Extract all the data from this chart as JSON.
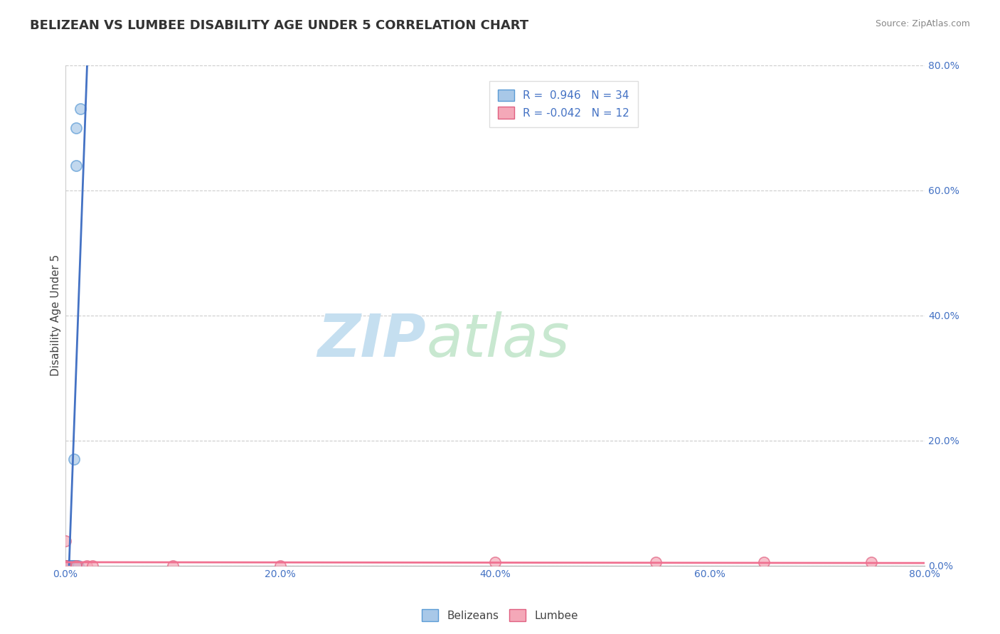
{
  "title": "BELIZEAN VS LUMBEE DISABILITY AGE UNDER 5 CORRELATION CHART",
  "source": "Source: ZipAtlas.com",
  "ylabel": "Disability Age Under 5",
  "xlim": [
    0.0,
    0.8
  ],
  "ylim": [
    0.0,
    0.8
  ],
  "xticks": [
    0.0,
    0.2,
    0.4,
    0.6,
    0.8
  ],
  "yticks": [
    0.0,
    0.2,
    0.4,
    0.6,
    0.8
  ],
  "xticklabels": [
    "0.0%",
    "20.0%",
    "40.0%",
    "60.0%",
    "80.0%"
  ],
  "yticklabels": [
    "0.0%",
    "20.0%",
    "40.0%",
    "60.0%",
    "80.0%"
  ],
  "belizean_color": "#a8c8e8",
  "lumbee_color": "#f4a8b8",
  "belizean_edge_color": "#5b9bd5",
  "lumbee_edge_color": "#e06080",
  "regression_blue_color": "#4472c4",
  "regression_pink_color": "#f07090",
  "belizean_R": 0.946,
  "belizean_N": 34,
  "lumbee_R": -0.042,
  "lumbee_N": 12,
  "watermark_zip": "ZIP",
  "watermark_atlas": "atlas",
  "belizean_x": [
    0.0,
    0.0,
    0.0,
    0.0,
    0.0,
    0.0,
    0.0,
    0.0,
    0.002,
    0.002,
    0.003,
    0.003,
    0.003,
    0.003,
    0.004,
    0.004,
    0.004,
    0.005,
    0.005,
    0.005,
    0.006,
    0.006,
    0.007,
    0.007,
    0.007,
    0.008,
    0.008,
    0.009,
    0.009,
    0.01,
    0.01,
    0.011,
    0.012,
    0.014
  ],
  "belizean_y": [
    0.0,
    0.0,
    0.0,
    0.0,
    0.0,
    0.0,
    0.0,
    0.0,
    0.0,
    0.0,
    0.0,
    0.0,
    0.0,
    0.0,
    0.0,
    0.0,
    0.0,
    0.0,
    0.0,
    0.0,
    0.0,
    0.0,
    0.0,
    0.0,
    0.0,
    0.0,
    0.17,
    0.0,
    0.0,
    0.64,
    0.7,
    0.0,
    0.0,
    0.73
  ],
  "lumbee_x": [
    0.0,
    0.0,
    0.0,
    0.01,
    0.02,
    0.025,
    0.1,
    0.2,
    0.4,
    0.55,
    0.65,
    0.75
  ],
  "lumbee_y": [
    0.0,
    0.0,
    0.04,
    0.0,
    0.0,
    0.0,
    0.0,
    0.0,
    0.005,
    0.005,
    0.005,
    0.005
  ],
  "background_color": "#ffffff",
  "plot_bg_color": "#ffffff",
  "grid_color": "#cccccc",
  "legend_labels": [
    "Belizeans",
    "Lumbee"
  ],
  "title_fontsize": 13,
  "label_fontsize": 11,
  "tick_fontsize": 10,
  "watermark_color_zip": "#c5dff0",
  "watermark_color_atlas": "#c8e8d0",
  "watermark_fontsize": 60
}
